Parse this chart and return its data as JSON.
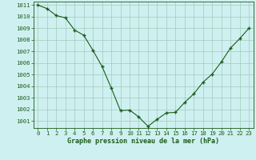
{
  "x": [
    0,
    1,
    2,
    3,
    4,
    5,
    6,
    7,
    8,
    9,
    10,
    11,
    12,
    13,
    14,
    15,
    16,
    17,
    18,
    19,
    20,
    21,
    22,
    23
  ],
  "y": [
    1011.0,
    1010.7,
    1010.1,
    1009.9,
    1008.85,
    1008.4,
    1007.1,
    1005.7,
    1003.85,
    1001.9,
    1001.95,
    1001.35,
    1000.55,
    1001.15,
    1001.7,
    1001.75,
    1002.6,
    1003.35,
    1004.35,
    1005.05,
    1006.1,
    1007.3,
    1008.1,
    1009.0
  ],
  "line_color": "#1a5c1a",
  "marker": "+",
  "background_color": "#cff0f0",
  "grid_color": "#a0ccbb",
  "xlabel": "Graphe pression niveau de la mer (hPa)",
  "xlabel_fontsize": 6.0,
  "ylim": [
    1000.4,
    1011.3
  ],
  "xlim": [
    -0.5,
    23.5
  ],
  "ytick_min": 1001,
  "ytick_max": 1011,
  "axis_label_color": "#1a5c1a",
  "tick_color": "#1a5c1a",
  "tick_fontsize": 5.2
}
